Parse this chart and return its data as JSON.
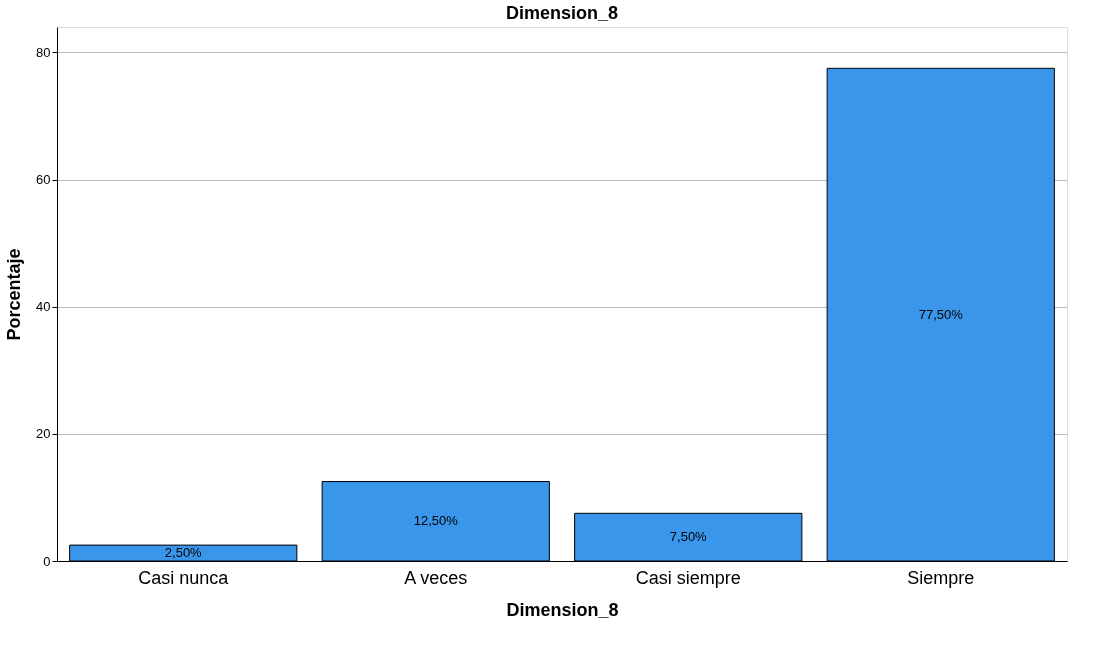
{
  "chart_data": {
    "type": "bar",
    "title": "Dimension_8",
    "xlabel": "Dimension_8",
    "ylabel": "Porcentaje",
    "categories": [
      "Casi nunca",
      "A veces",
      "Casi siempre",
      "Siempre"
    ],
    "values": [
      2.5,
      12.5,
      7.5,
      77.5
    ],
    "value_labels": [
      "2,50%",
      "12,50%",
      "7,50%",
      "77,50%"
    ],
    "color": "#3a96ea",
    "ylim": [
      0,
      84
    ],
    "yticks": [
      0,
      20,
      40,
      60,
      80
    ],
    "grid": "y"
  }
}
